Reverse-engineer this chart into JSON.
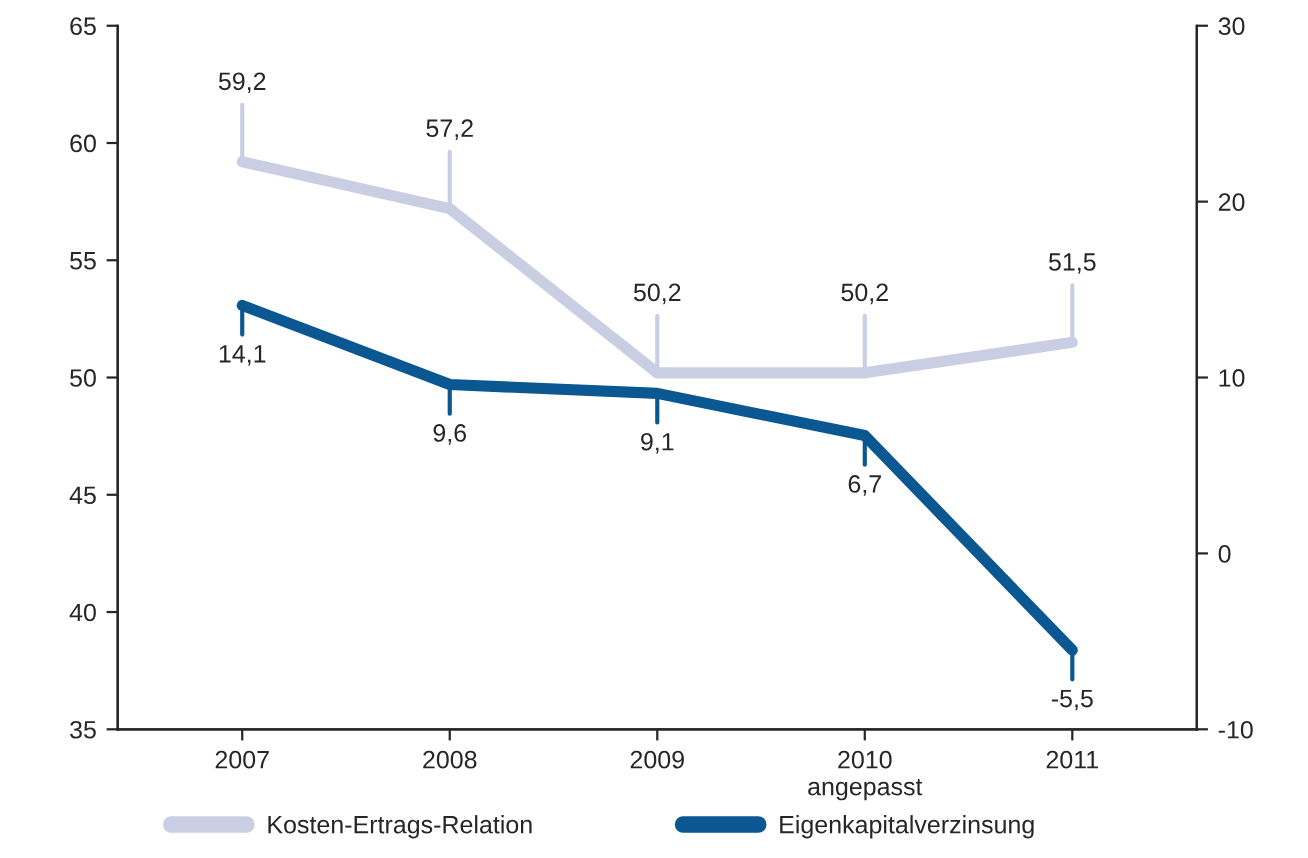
{
  "chart_data": {
    "type": "line",
    "categories": [
      "2007",
      "2008",
      "2009",
      "2010\nangepasst",
      "2011"
    ],
    "series": [
      {
        "name": "Kosten-Ertrags-Relation",
        "color": "#c9cee2",
        "values": [
          59.2,
          57.2,
          50.2,
          50.2,
          51.5
        ],
        "value_labels": [
          "59,2",
          "57,2",
          "50,2",
          "50,2",
          "51,5"
        ]
      },
      {
        "name": "Eigenkapitalverzinsung",
        "color": "#0b5791",
        "axis": "y2",
        "values": [
          14.1,
          9.6,
          9.1,
          6.7,
          -5.5
        ],
        "value_labels": [
          "14,1",
          "9,6",
          "9,1",
          "6,7",
          "-5,5"
        ]
      }
    ],
    "ylim": [
      35,
      65
    ],
    "yticks": [
      35,
      40,
      45,
      50,
      55,
      60,
      65
    ],
    "y2lim": [
      -10,
      30
    ],
    "y2ticks": [
      -10,
      0,
      10,
      20,
      30
    ],
    "legend": "bottom",
    "grid": false,
    "marker": "none",
    "line_style": "solid"
  }
}
